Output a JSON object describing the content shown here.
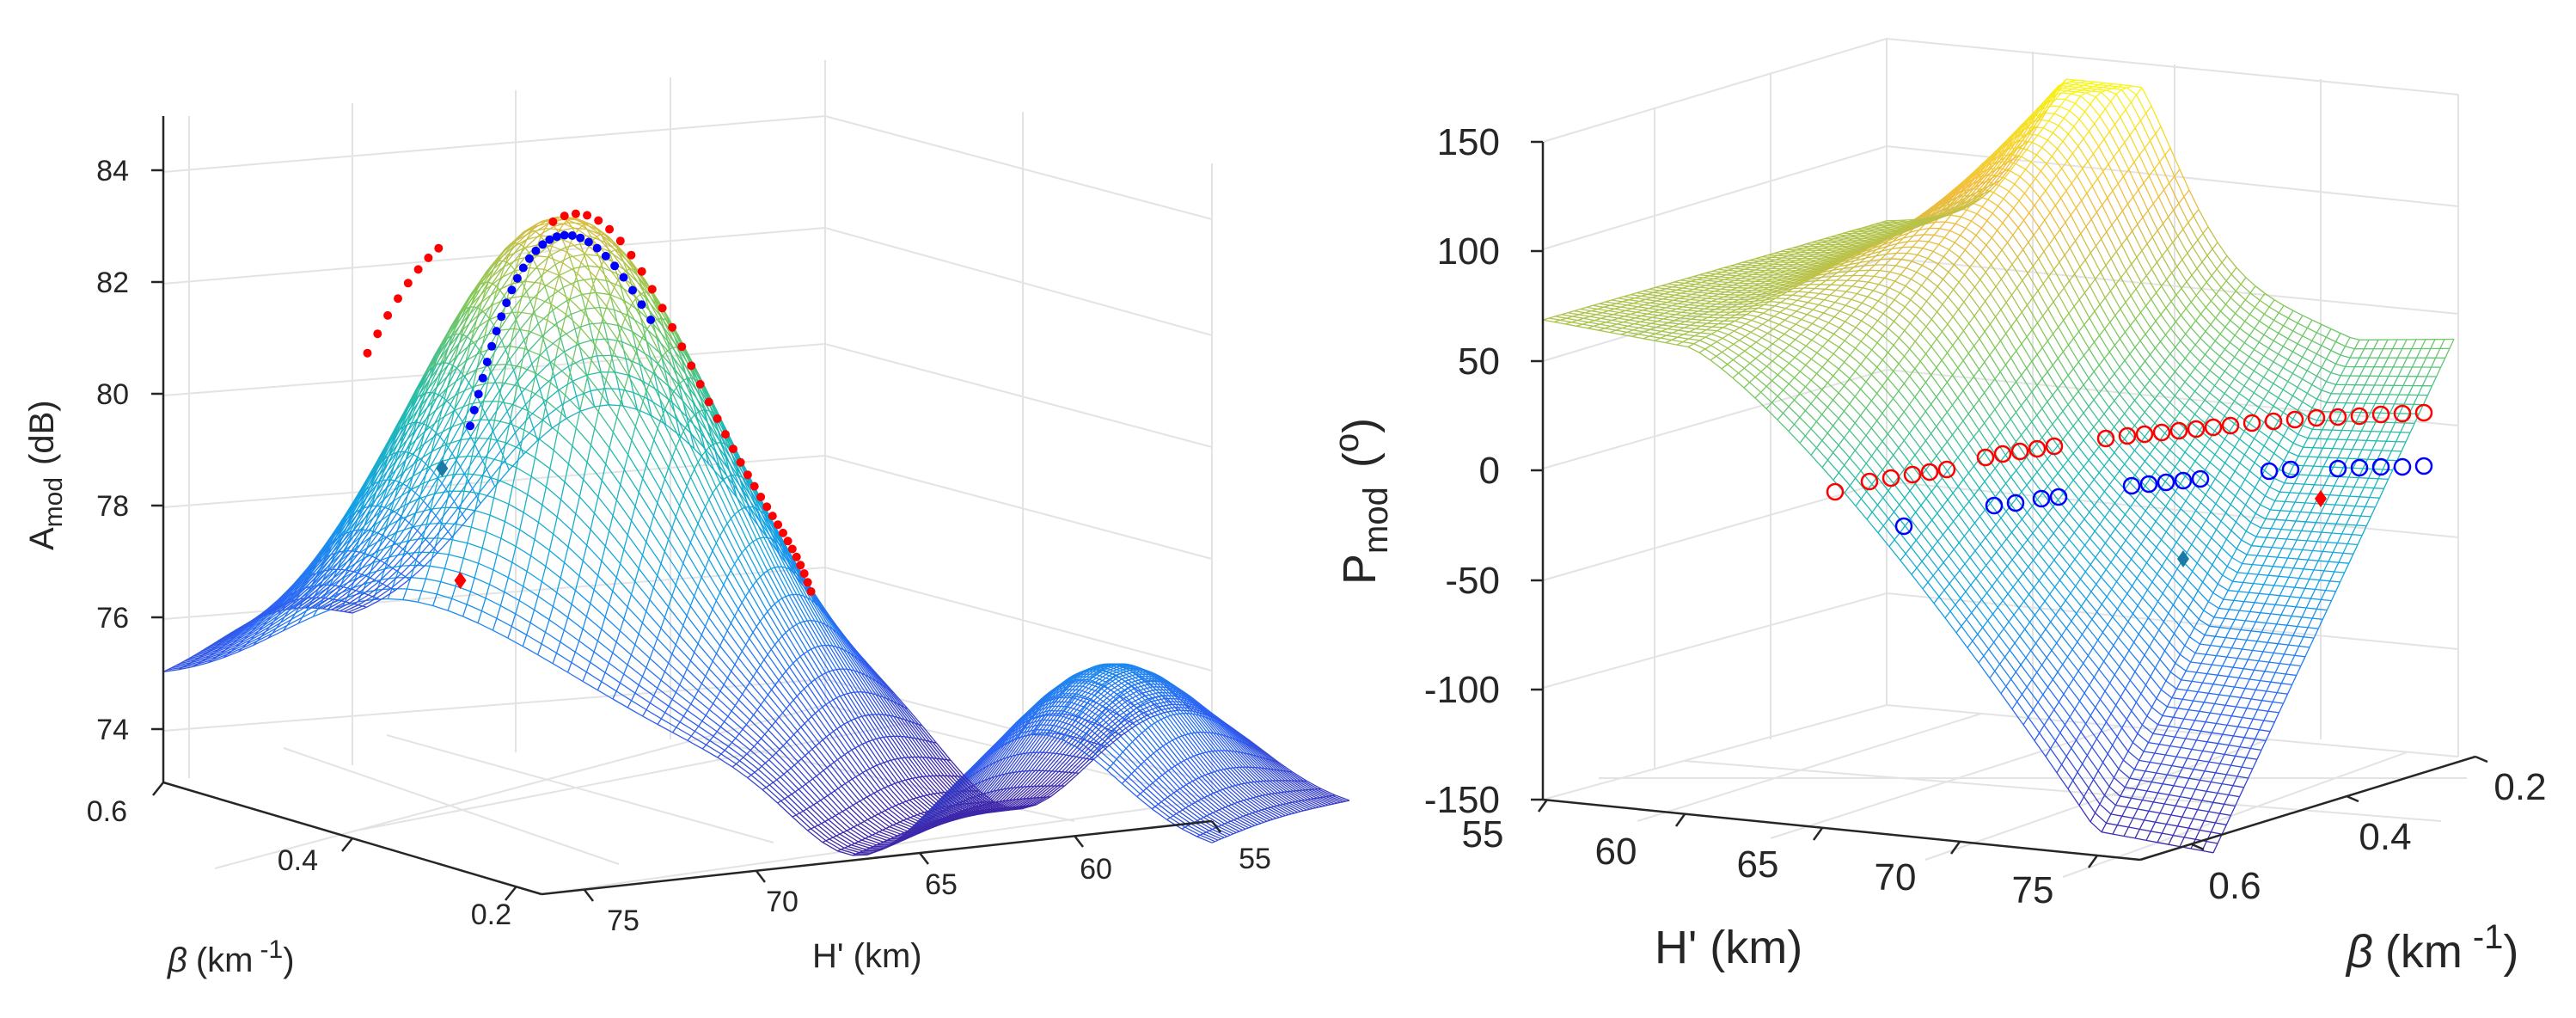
{
  "colors": {
    "colormap": [
      "#3e26a8",
      "#2d63f6",
      "#13a0e8",
      "#1fbbb0",
      "#80c957",
      "#f2bb3e",
      "#f9fb15"
    ],
    "marker_red": "#ff0000",
    "marker_blue": "#0000ff",
    "marker_teal": "#1a7ca6",
    "axis": "#262626",
    "grid": "#e3e3e3"
  },
  "chart_data": [
    {
      "type": "surface3d",
      "panel": "left",
      "zlabel_main": "A",
      "zlabel_sub": "mod",
      "zlabel_unit": "(dB)",
      "xlabel": "H' (km)",
      "ylabel_symbol": "β",
      "ylabel_unit": "(km",
      "ylabel_exp": "-1",
      "ylabel_close": ")",
      "zlim": [
        73.3,
        85
      ],
      "xlim": [
        54,
        76
      ],
      "ylim": [
        0.15,
        0.65
      ],
      "z_ticks": [
        "74",
        "76",
        "78",
        "80",
        "82",
        "84"
      ],
      "x_ticks": [
        "75",
        "70",
        "65",
        "60",
        "55"
      ],
      "y_ticks": [
        "0.6",
        "0.4",
        "0.2"
      ],
      "marker_series": [
        {
          "name": "red maxima",
          "color": "red",
          "points_HB": [
            [
              62,
              0.36
            ],
            [
              66,
              0.4
            ],
            [
              70,
              0.5
            ],
            [
              66,
              0.52
            ]
          ]
        },
        {
          "name": "blue maxima",
          "color": "blue",
          "points_HB": [
            [
              65,
              0.2
            ],
            [
              68,
              0.24
            ],
            [
              72,
              0.32
            ]
          ]
        },
        {
          "name": "teal diamond",
          "color": "teal",
          "points_HB": [
            [
              71,
              0.48
            ]
          ]
        },
        {
          "name": "red diamond",
          "color": "red",
          "points_HB": [
            [
              69,
              0.5
            ]
          ]
        }
      ]
    },
    {
      "type": "surface3d",
      "panel": "right",
      "zlabel_main": "P",
      "zlabel_sub": "mod",
      "zlabel_unit": "(",
      "zlabel_sup": "o",
      "zlabel_close": ")",
      "xlabel": "H' (km)",
      "ylabel_symbol": "β",
      "ylabel_unit": "(km",
      "ylabel_exp": "-1",
      "ylabel_close": ")",
      "zlim": [
        -150,
        150
      ],
      "xlim": [
        55,
        78
      ],
      "ylim": [
        0.15,
        0.65
      ],
      "z_ticks": [
        "150",
        "100",
        "50",
        "0",
        "-50",
        "-100",
        "-150"
      ],
      "x_ticks": [
        "55",
        "60",
        "65",
        "70",
        "75"
      ],
      "y_ticks": [
        "0.2",
        "0.4",
        "0.6"
      ],
      "marker_series": [
        {
          "name": "red circles",
          "color": "red",
          "z_level": 20
        },
        {
          "name": "blue circles",
          "color": "blue",
          "z_level": -5
        },
        {
          "name": "teal diamond",
          "color": "teal",
          "z_level": -40
        },
        {
          "name": "red diamond",
          "color": "red",
          "z_level": -15
        }
      ]
    }
  ]
}
